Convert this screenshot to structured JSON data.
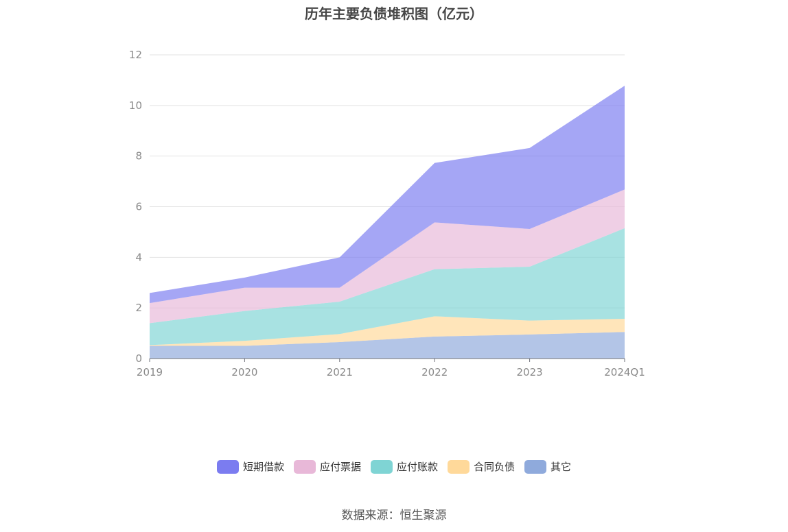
{
  "chart_data": {
    "type": "area",
    "title": "历年主要负债堆积图（亿元）",
    "categories": [
      "2019",
      "2020",
      "2021",
      "2022",
      "2023",
      "2024Q1"
    ],
    "ylim": [
      0,
      12
    ],
    "yticks": [
      0,
      2,
      4,
      6,
      8,
      10,
      12
    ],
    "grid": true,
    "legend_position": "bottom",
    "stacked": true,
    "series": [
      {
        "name": "其它",
        "color": "#8faadc",
        "values": [
          0.5,
          0.5,
          0.65,
          0.87,
          0.95,
          1.05
        ]
      },
      {
        "name": "合同负债",
        "color": "#ffd99a",
        "values": [
          0.03,
          0.2,
          0.32,
          0.8,
          0.55,
          0.52
        ]
      },
      {
        "name": "应付账款",
        "color": "#7fd4d4",
        "values": [
          0.87,
          1.18,
          1.28,
          1.86,
          2.13,
          3.58
        ]
      },
      {
        "name": "应付票据",
        "color": "#e8b8d8",
        "values": [
          0.79,
          0.92,
          0.55,
          1.85,
          1.49,
          1.53
        ]
      },
      {
        "name": "短期借款",
        "color": "#7b7cf0",
        "values": [
          0.4,
          0.4,
          1.2,
          2.35,
          3.2,
          4.1
        ]
      }
    ]
  },
  "legend_order": [
    "短期借款",
    "应付票据",
    "应付账款",
    "合同负债",
    "其它"
  ],
  "source": "数据来源：恒生聚源"
}
